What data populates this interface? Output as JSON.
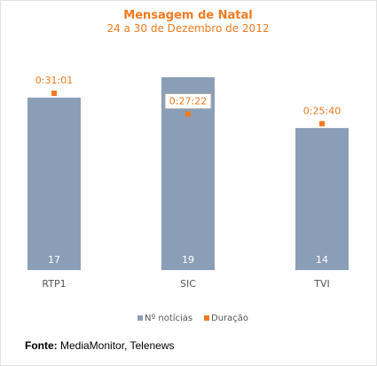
{
  "chart_data": {
    "type": "bar",
    "title": "Mensagem de Natal",
    "subtitle": "24 a 30 de Dezembro de 2012",
    "categories": [
      "RTP1",
      "SIC",
      "TVI"
    ],
    "series": [
      {
        "name": "Nº notícias",
        "values": [
          17,
          19,
          14
        ],
        "color": "#8a9fb7"
      },
      {
        "name": "Duração",
        "values": [
          "0:31:01",
          "0:27:22",
          "0:25:40"
        ],
        "seconds": [
          1861,
          1642,
          1540
        ],
        "color": "#f07a20"
      }
    ],
    "legend_position": "bottom",
    "grid": false
  },
  "source": {
    "label": "Fonte:",
    "text": "MediaMonitor, Telenews"
  }
}
